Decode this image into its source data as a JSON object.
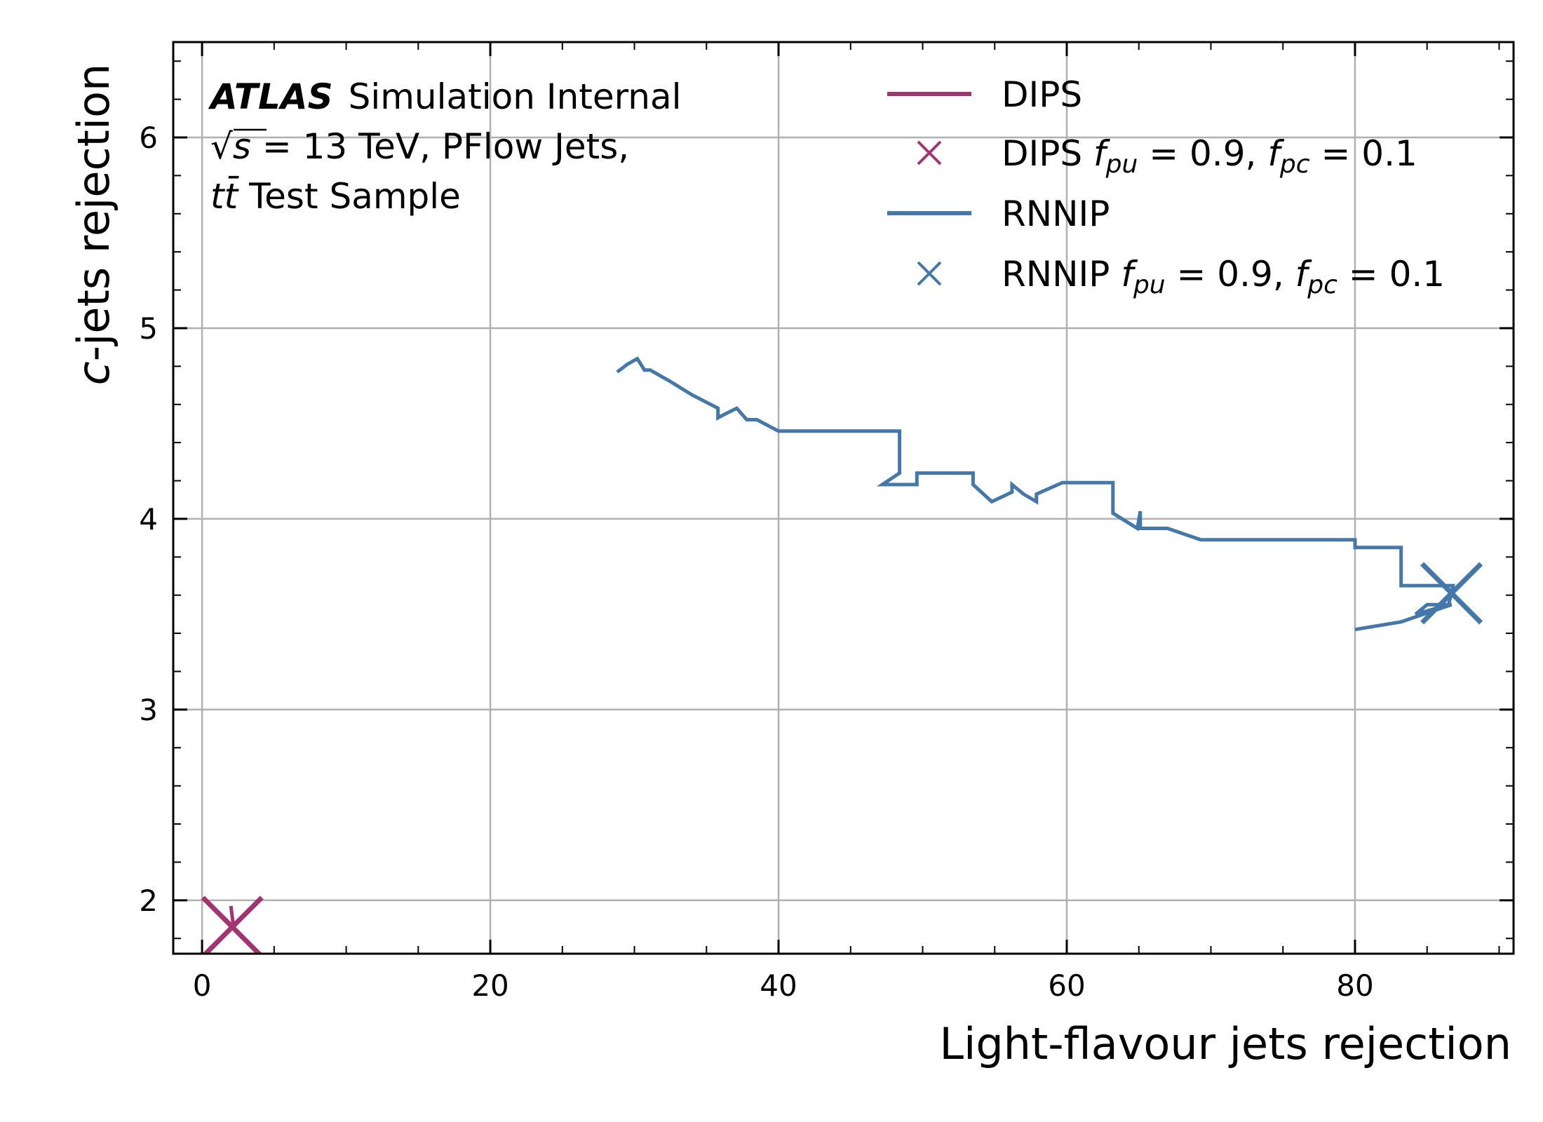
{
  "chart_data": {
    "type": "line",
    "xlabel": "Light-flavour jets rejection",
    "ylabel_italic": "c",
    "ylabel_rest": "-jets rejection",
    "xlim": [
      -2,
      91
    ],
    "ylim": [
      1.72,
      6.5
    ],
    "x_ticks": [
      0,
      20,
      40,
      60,
      80
    ],
    "x_tick_labels": [
      "0",
      "20",
      "40",
      "60",
      "80"
    ],
    "x_minor_step": 5,
    "y_ticks": [
      2,
      3,
      4,
      5,
      6
    ],
    "y_tick_labels": [
      "2",
      "3",
      "4",
      "5",
      "6"
    ],
    "y_minor_step": 0.2,
    "grid": true,
    "legend_placement": "top-right",
    "annotation": {
      "atlas": "ATLAS",
      "atlas_rest": "Simulation Internal",
      "sqrt_symbol": "√",
      "sqrt_s": "s",
      "energy": " = 13 TeV, PFlow Jets,",
      "sample_tt": "tt̄",
      "sample_rest": " Test Sample"
    },
    "series": [
      {
        "name": "DIPS",
        "color": "#a2346f",
        "kind": "line",
        "points": [
          [
            2.0,
            1.97
          ],
          [
            2.2,
            1.85
          ]
        ]
      },
      {
        "name_main": "DIPS ",
        "name_math": "f",
        "name_sub1": "pu",
        "name_mid": " = 0.9, ",
        "name_sub2": "pc",
        "name_end": " = 0.1",
        "color": "#a2346f",
        "kind": "marker",
        "points": [
          [
            2.1,
            1.86
          ]
        ]
      },
      {
        "name": "RNNIP",
        "color": "#4477aa",
        "kind": "line",
        "points": [
          [
            28.8,
            4.77
          ],
          [
            29.5,
            4.81
          ],
          [
            30.2,
            4.84
          ],
          [
            30.7,
            4.78
          ],
          [
            31.1,
            4.78
          ],
          [
            32.5,
            4.72
          ],
          [
            34.0,
            4.65
          ],
          [
            35.8,
            4.58
          ],
          [
            35.8,
            4.53
          ],
          [
            36.3,
            4.55
          ],
          [
            37.1,
            4.58
          ],
          [
            37.8,
            4.52
          ],
          [
            38.5,
            4.52
          ],
          [
            40.0,
            4.46
          ],
          [
            42.0,
            4.46
          ],
          [
            44.0,
            4.46
          ],
          [
            46.0,
            4.46
          ],
          [
            48.4,
            4.46
          ],
          [
            48.4,
            4.24
          ],
          [
            47.2,
            4.18
          ],
          [
            48.4,
            4.18
          ],
          [
            49.6,
            4.18
          ],
          [
            49.6,
            4.24
          ],
          [
            51.5,
            4.24
          ],
          [
            53.5,
            4.24
          ],
          [
            53.5,
            4.18
          ],
          [
            54.8,
            4.09
          ],
          [
            56.2,
            4.14
          ],
          [
            56.2,
            4.18
          ],
          [
            57.0,
            4.13
          ],
          [
            57.9,
            4.09
          ],
          [
            57.9,
            4.13
          ],
          [
            59.7,
            4.19
          ],
          [
            61.5,
            4.19
          ],
          [
            63.2,
            4.19
          ],
          [
            63.2,
            4.03
          ],
          [
            64.9,
            3.95
          ],
          [
            65.1,
            4.04
          ],
          [
            65.1,
            3.95
          ],
          [
            67.0,
            3.95
          ],
          [
            69.3,
            3.89
          ],
          [
            72.0,
            3.89
          ],
          [
            75.0,
            3.89
          ],
          [
            78.0,
            3.89
          ],
          [
            80.0,
            3.89
          ],
          [
            80.0,
            3.85
          ],
          [
            83.2,
            3.85
          ],
          [
            83.2,
            3.65
          ],
          [
            85.0,
            3.65
          ],
          [
            86.8,
            3.65
          ],
          [
            86.5,
            3.55
          ],
          [
            84.2,
            3.5
          ],
          [
            85.0,
            3.55
          ],
          [
            86.7,
            3.55
          ],
          [
            83.2,
            3.46
          ],
          [
            80.0,
            3.42
          ]
        ]
      },
      {
        "name_main": "RNNIP ",
        "name_math": "f",
        "name_sub1": "pu",
        "name_mid": " = 0.9, ",
        "name_sub2": "pc",
        "name_end": " = 0.1",
        "color": "#4477aa",
        "kind": "marker",
        "points": [
          [
            86.7,
            3.61
          ]
        ]
      }
    ]
  }
}
